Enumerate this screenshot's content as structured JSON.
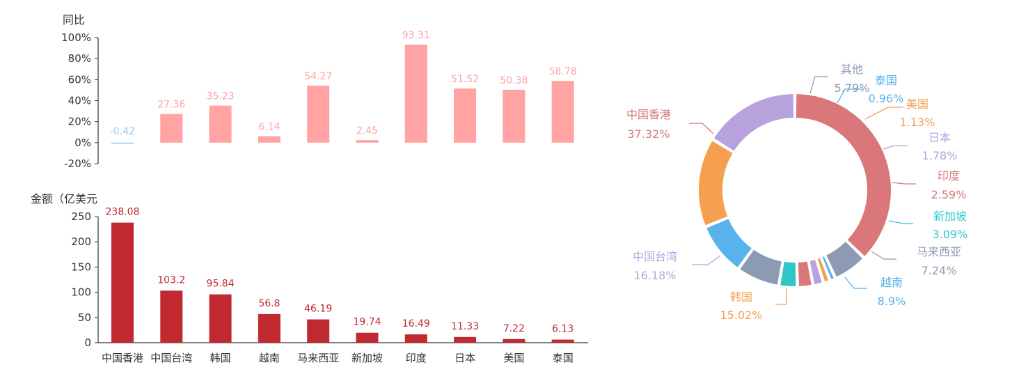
{
  "chart_data": [
    {
      "type": "bar",
      "ylabel": "同比",
      "categories": [
        "中国香港",
        "中国台湾",
        "韩国",
        "越南",
        "马来西亚",
        "新加坡",
        "印度",
        "日本",
        "美国",
        "泰国"
      ],
      "values": [
        -0.42,
        27.36,
        35.23,
        6.14,
        54.27,
        2.45,
        93.31,
        51.52,
        50.38,
        58.78
      ],
      "data_labels": [
        "-0.42",
        "27.36",
        "35.23",
        "6.14",
        "54.27",
        "2.45",
        "93.31",
        "51.52",
        "50.38",
        "58.78"
      ],
      "ylim": [
        -20,
        100
      ],
      "yticks": [
        "-20%",
        "0%",
        "20%",
        "40%",
        "60%",
        "80%",
        "100%"
      ],
      "color": "#FFA3A3",
      "negative_color": "#8FCDF5"
    },
    {
      "type": "bar",
      "ylabel": "金额（亿美元",
      "categories": [
        "中国香港",
        "中国台湾",
        "韩国",
        "越南",
        "马来西亚",
        "新加坡",
        "印度",
        "日本",
        "美国",
        "泰国"
      ],
      "values": [
        238.08,
        103.2,
        95.84,
        56.8,
        46.19,
        19.74,
        16.49,
        11.33,
        7.22,
        6.13
      ],
      "data_labels": [
        "238.08",
        "103.2",
        "95.84",
        "56.8",
        "46.19",
        "19.74",
        "16.49",
        "11.33",
        "7.22",
        "6.13"
      ],
      "ylim": [
        0,
        250
      ],
      "yticks": [
        "0",
        "50",
        "100",
        "150",
        "200",
        "250"
      ],
      "color": "#C0292F"
    },
    {
      "type": "pie",
      "slices": [
        {
          "name": "中国香港",
          "value": 37.32,
          "label": "37.32%",
          "color": "#D9777B"
        },
        {
          "name": "其他",
          "value": 5.79,
          "label": "5.79%",
          "color": "#8D9AB4"
        },
        {
          "name": "泰国",
          "value": 0.96,
          "label": "0.96%",
          "color": "#58B2EC"
        },
        {
          "name": "美国",
          "value": 1.13,
          "label": "1.13%",
          "color": "#F4A04E"
        },
        {
          "name": "日本",
          "value": 1.78,
          "label": "1.78%",
          "color": "#B7A2DE"
        },
        {
          "name": "印度",
          "value": 2.59,
          "label": "2.59%",
          "color": "#D9777B"
        },
        {
          "name": "新加坡",
          "value": 3.09,
          "label": "3.09%",
          "color": "#2EC7C9"
        },
        {
          "name": "马来西亚",
          "value": 7.24,
          "label": "7.24%",
          "color": "#8D9AB4"
        },
        {
          "name": "越南",
          "value": 8.9,
          "label": "8.9%",
          "color": "#58B2EC"
        },
        {
          "name": "韩国",
          "value": 15.02,
          "label": "15.02%",
          "color": "#F4A04E"
        },
        {
          "name": "中国台湾",
          "value": 16.18,
          "label": "16.18%",
          "color": "#B7A2DE"
        }
      ]
    }
  ]
}
